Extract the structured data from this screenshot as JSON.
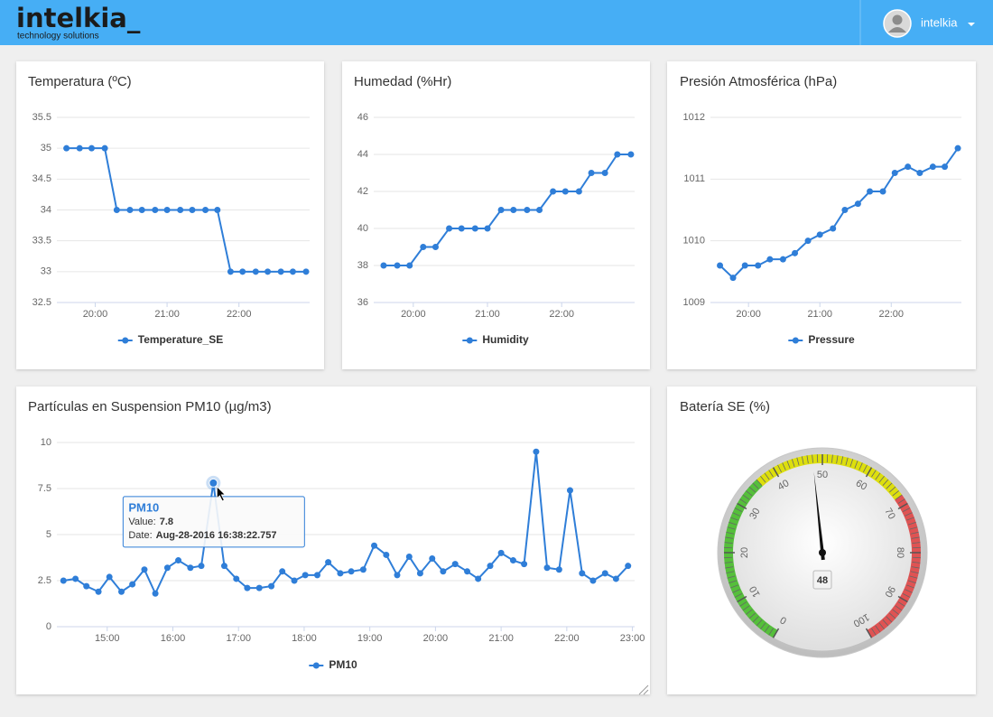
{
  "header": {
    "logo": "intelkia_",
    "tagline": "technology solutions",
    "user": "intelkia"
  },
  "chart_data": [
    {
      "type": "line",
      "title": "Temperatura (ºC)",
      "x": [
        1176,
        1187,
        1197,
        1208,
        1218,
        1229,
        1239,
        1250,
        1260,
        1271,
        1281,
        1292,
        1302,
        1313,
        1323,
        1334,
        1344,
        1355,
        1365,
        1376
      ],
      "series": [
        {
          "name": "Temperature_SE",
          "color": "#2f7ed8",
          "values": [
            35,
            35,
            35,
            35,
            34,
            34,
            34,
            34,
            34,
            34,
            34,
            34,
            34,
            33,
            33,
            33,
            33,
            33,
            33,
            33
          ]
        }
      ],
      "xlim": [
        1168,
        1379
      ],
      "xticks": [
        {
          "value": 1200,
          "label": "20:00"
        },
        {
          "value": 1260,
          "label": "21:00"
        },
        {
          "value": 1320,
          "label": "22:00"
        }
      ],
      "ylim": [
        32.5,
        35.5
      ],
      "yticks": [
        32.5,
        33,
        33.5,
        34,
        34.5,
        35,
        35.5
      ],
      "grid": true,
      "legend": "bottom"
    },
    {
      "type": "line",
      "title": "Humedad (%Hr)",
      "x": [
        1176,
        1187,
        1197,
        1208,
        1218,
        1229,
        1239,
        1250,
        1260,
        1271,
        1281,
        1292,
        1302,
        1313,
        1323,
        1334,
        1344,
        1355,
        1365,
        1376
      ],
      "series": [
        {
          "name": "Humidity",
          "color": "#2f7ed8",
          "values": [
            38,
            38,
            38,
            39,
            39,
            40,
            40,
            40,
            40,
            41,
            41,
            41,
            41,
            42,
            42,
            42,
            43,
            43,
            44,
            44
          ]
        }
      ],
      "xlim": [
        1168,
        1379
      ],
      "xticks": [
        {
          "value": 1200,
          "label": "20:00"
        },
        {
          "value": 1260,
          "label": "21:00"
        },
        {
          "value": 1320,
          "label": "22:00"
        }
      ],
      "ylim": [
        36,
        46
      ],
      "yticks": [
        36,
        38,
        40,
        42,
        44,
        46
      ],
      "grid": true,
      "legend": "bottom"
    },
    {
      "type": "line",
      "title": "Presión Atmosférica (hPa)",
      "x": [
        1176,
        1187,
        1197,
        1208,
        1218,
        1229,
        1239,
        1250,
        1260,
        1271,
        1281,
        1292,
        1302,
        1313,
        1323,
        1334,
        1344,
        1355,
        1365,
        1376
      ],
      "series": [
        {
          "name": "Pressure",
          "color": "#2f7ed8",
          "values": [
            1009.6,
            1009.4,
            1009.6,
            1009.6,
            1009.7,
            1009.7,
            1009.8,
            1010.0,
            1010.1,
            1010.2,
            1010.5,
            1010.6,
            1010.8,
            1010.8,
            1011.1,
            1011.2,
            1011.1,
            1011.2,
            1011.2,
            1011.5
          ]
        }
      ],
      "xlim": [
        1168,
        1379
      ],
      "xticks": [
        {
          "value": 1200,
          "label": "20:00"
        },
        {
          "value": 1260,
          "label": "21:00"
        },
        {
          "value": 1320,
          "label": "22:00"
        }
      ],
      "ylim": [
        1009,
        1012
      ],
      "yticks": [
        1009,
        1010,
        1011,
        1012
      ],
      "grid": true,
      "legend": "bottom"
    },
    {
      "type": "line",
      "title": "Partículas en Suspension PM10 (µg/m3)",
      "x": [
        860,
        871,
        881,
        892,
        902,
        913,
        923,
        934,
        944,
        955,
        965,
        976,
        986,
        997,
        1007,
        1018,
        1028,
        1039,
        1050,
        1060,
        1071,
        1081,
        1092,
        1102,
        1113,
        1123,
        1134,
        1144,
        1155,
        1165,
        1176,
        1186,
        1197,
        1207,
        1218,
        1229,
        1239,
        1250,
        1260,
        1271,
        1281,
        1292,
        1302,
        1313,
        1323,
        1334,
        1344,
        1355,
        1365,
        1376
      ],
      "series": [
        {
          "name": "PM10",
          "color": "#2f7ed8",
          "values": [
            2.5,
            2.6,
            2.2,
            1.9,
            2.7,
            1.9,
            2.3,
            3.1,
            1.8,
            3.2,
            3.6,
            3.2,
            3.3,
            7.8,
            3.3,
            2.6,
            2.1,
            2.1,
            2.2,
            3.0,
            2.5,
            2.8,
            2.8,
            3.5,
            2.9,
            3.0,
            3.1,
            4.4,
            3.9,
            2.8,
            3.8,
            2.9,
            3.7,
            3.0,
            3.4,
            3.0,
            2.6,
            3.3,
            4.0,
            3.6,
            3.4,
            9.5,
            3.2,
            3.1,
            7.4,
            2.9,
            2.5,
            2.9,
            2.6,
            3.3
          ]
        }
      ],
      "xlim": [
        854,
        1382
      ],
      "xticks": [
        {
          "value": 900,
          "label": "15:00"
        },
        {
          "value": 960,
          "label": "16:00"
        },
        {
          "value": 1020,
          "label": "17:00"
        },
        {
          "value": 1080,
          "label": "18:00"
        },
        {
          "value": 1140,
          "label": "19:00"
        },
        {
          "value": 1200,
          "label": "20:00"
        },
        {
          "value": 1260,
          "label": "21:00"
        },
        {
          "value": 1320,
          "label": "22:00"
        },
        {
          "value": 1380,
          "label": "23:00"
        }
      ],
      "ylim": [
        0,
        10
      ],
      "yticks": [
        0,
        2.5,
        5,
        7.5,
        10
      ],
      "grid": true,
      "legend": "bottom",
      "tooltip": {
        "value_label": "Value:",
        "date_label": "Date:",
        "date": "Aug-28-2016 16:38:22.757"
      }
    },
    {
      "type": "gauge",
      "title": "Batería SE (%)",
      "value": 48,
      "ylim": [
        0,
        100
      ],
      "yticks": [
        0,
        10,
        20,
        30,
        40,
        50,
        60,
        70,
        80,
        90,
        100
      ],
      "bands": [
        {
          "from": 0,
          "to": 36,
          "color": "#55bf3b"
        },
        {
          "from": 36,
          "to": 68,
          "color": "#dddf0d"
        },
        {
          "from": 68,
          "to": 100,
          "color": "#df5353"
        }
      ]
    }
  ]
}
